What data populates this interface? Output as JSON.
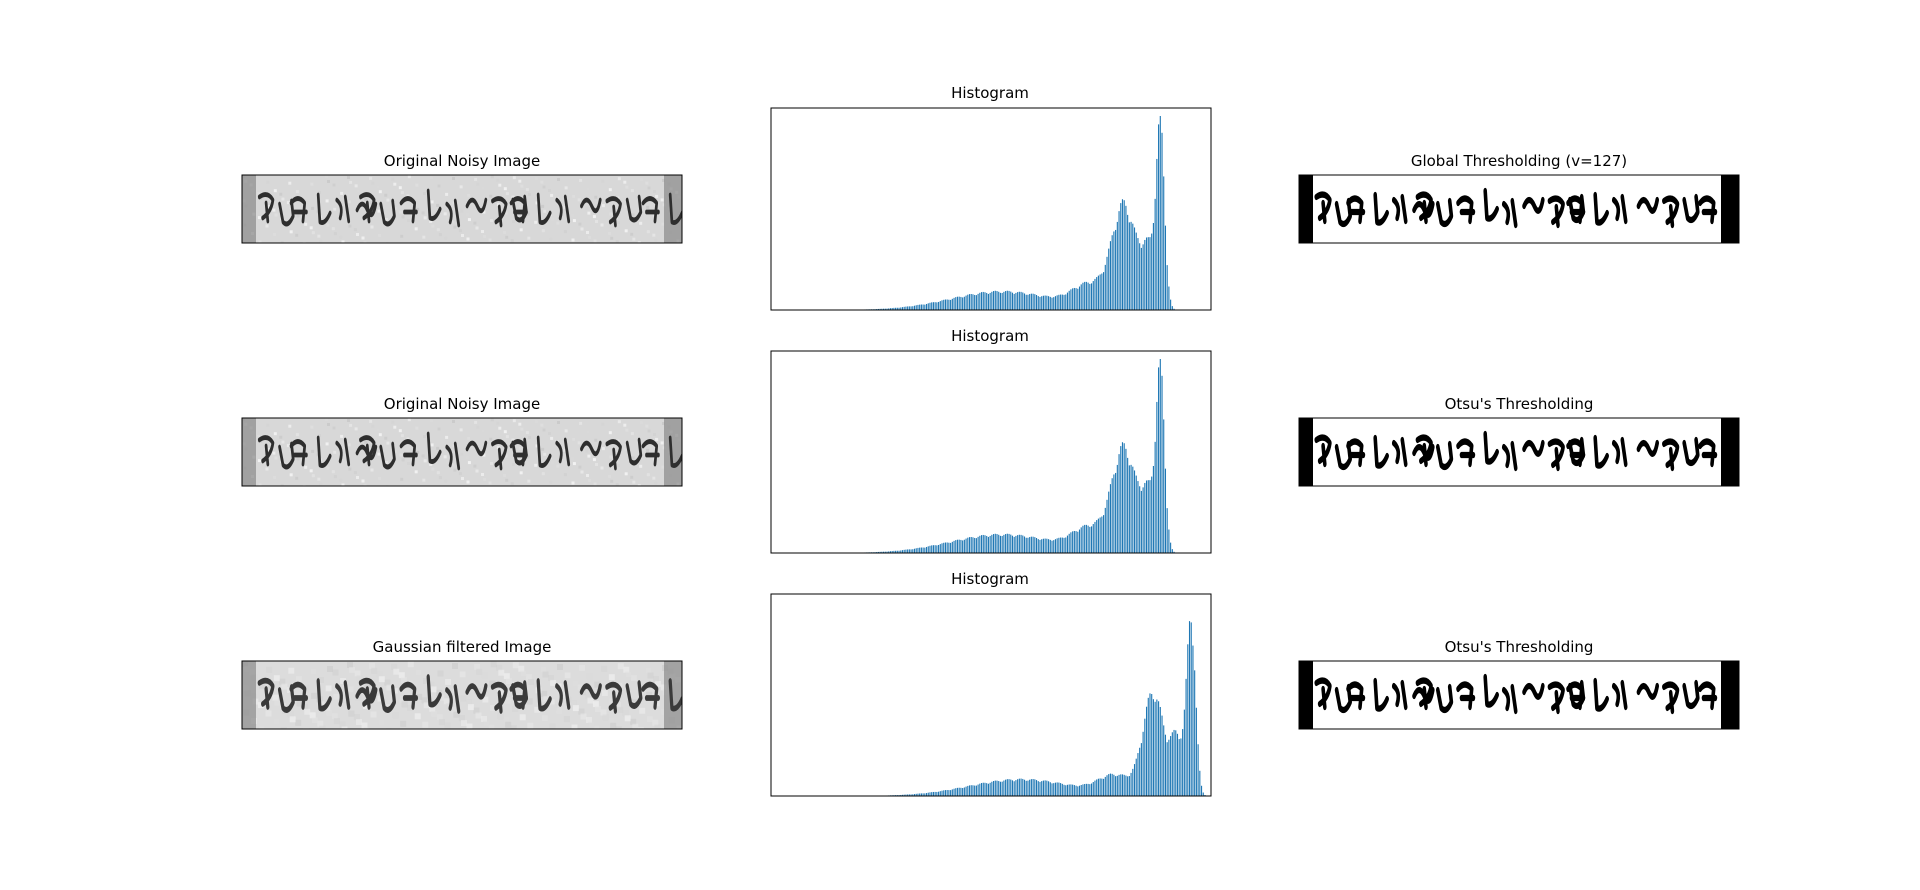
{
  "figure": {
    "background": "#ffffff",
    "bar_color": "#1f77b4"
  },
  "chart_data": [
    {
      "type": "image",
      "title": "Original Noisy Image",
      "content": "grayscale manuscript strip with dark handwritten script on a light noisy background",
      "render": "gray"
    },
    {
      "type": "bar",
      "title": "Histogram",
      "bins": 256,
      "xlim": [
        0,
        256
      ],
      "note": "approximate relative frequencies (peak = 1.0)",
      "peaks": [
        {
          "center": 134,
          "width": 30,
          "height": 0.1
        },
        {
          "center": 185,
          "width": 10,
          "height": 0.12
        },
        {
          "center": 205,
          "width": 7,
          "height": 0.55
        },
        {
          "center": 226,
          "width": 2.5,
          "height": 0.95
        },
        {
          "center": 219,
          "width": 4,
          "height": 0.28
        }
      ],
      "range": [
        10,
        245
      ]
    },
    {
      "type": "image",
      "title": "Global Thresholding (v=127)",
      "content": "binary black-and-white version of the manuscript strip",
      "render": "binary"
    },
    {
      "type": "image",
      "title": "Original Noisy Image",
      "content": "grayscale manuscript strip with dark handwritten script on a light noisy background",
      "render": "gray"
    },
    {
      "type": "bar",
      "title": "Histogram",
      "bins": 256,
      "xlim": [
        0,
        256
      ],
      "note": "approximate relative frequencies (peak = 1.0)",
      "peaks": [
        {
          "center": 134,
          "width": 30,
          "height": 0.1
        },
        {
          "center": 185,
          "width": 10,
          "height": 0.12
        },
        {
          "center": 205,
          "width": 7,
          "height": 0.55
        },
        {
          "center": 226,
          "width": 2.5,
          "height": 0.95
        },
        {
          "center": 219,
          "width": 4,
          "height": 0.28
        }
      ],
      "range": [
        10,
        245
      ]
    },
    {
      "type": "image",
      "title": "Otsu's Thresholding",
      "content": "binary black-and-white version of the manuscript strip (Otsu threshold)",
      "render": "binary"
    },
    {
      "type": "image",
      "title": "Gaussian filtered Image",
      "content": "smoothed grayscale manuscript strip",
      "render": "gray-smooth"
    },
    {
      "type": "bar",
      "title": "Histogram",
      "bins": 256,
      "xlim": [
        0,
        256
      ],
      "note": "approximate relative frequencies (peak = 1.0)",
      "peaks": [
        {
          "center": 145,
          "width": 30,
          "height": 0.09
        },
        {
          "center": 200,
          "width": 10,
          "height": 0.1
        },
        {
          "center": 222,
          "width": 6,
          "height": 0.55
        },
        {
          "center": 244,
          "width": 2.5,
          "height": 0.95
        },
        {
          "center": 236,
          "width": 4,
          "height": 0.3
        }
      ],
      "range": [
        50,
        252
      ]
    },
    {
      "type": "image",
      "title": "Otsu's Thresholding",
      "content": "binary black-and-white version of the smoothed manuscript strip (Otsu threshold)",
      "render": "binary"
    }
  ]
}
